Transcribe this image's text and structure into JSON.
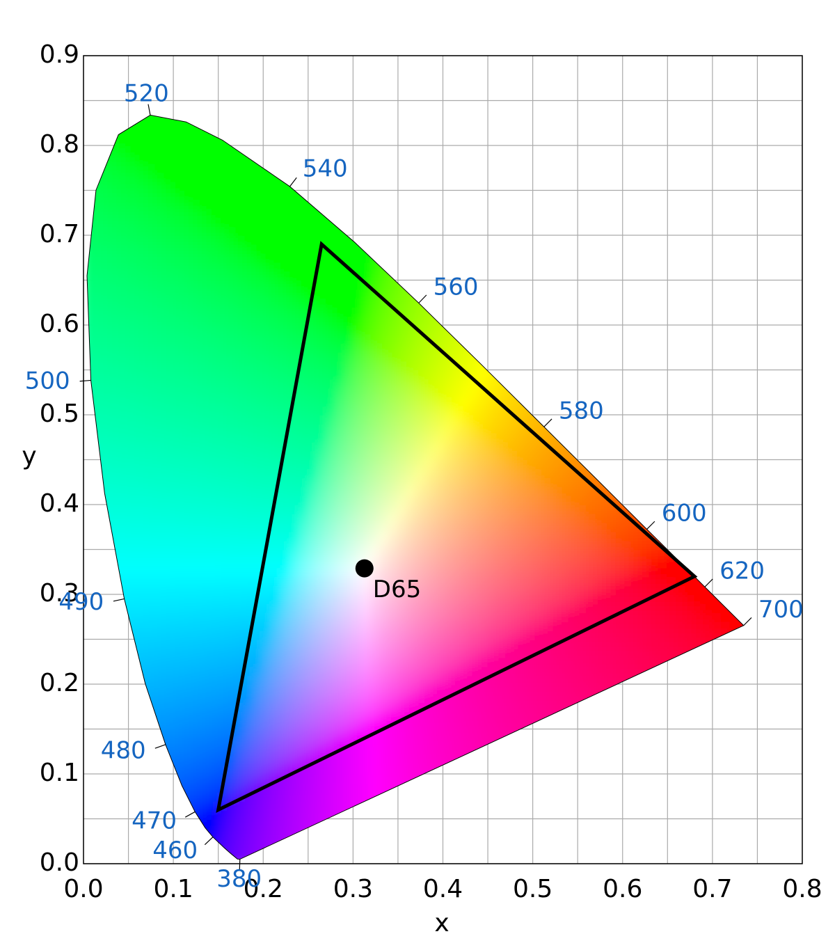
{
  "chart_data": {
    "type": "chromaticity",
    "x_label": "x",
    "y_label": "y",
    "xlim": [
      0,
      0.8
    ],
    "ylim": [
      0,
      0.9
    ],
    "xticks": [
      {
        "value": 0,
        "label": "0.0"
      },
      0.1,
      0.2,
      0.3,
      0.4,
      0.5,
      0.6,
      0.7,
      0.8
    ],
    "yticks": [
      {
        "value": 0,
        "label": "0.0"
      },
      0.1,
      0.2,
      0.3,
      0.4,
      0.5,
      0.6,
      0.7,
      0.8,
      0.9
    ],
    "grid": true,
    "label_color": "#1565c0",
    "locus": {
      "x": [
        0.1741,
        0.1714,
        0.1644,
        0.1566,
        0.144,
        0.1355,
        0.1241,
        0.1096,
        0.0913,
        0.0687,
        0.0454,
        0.0235,
        0.0082,
        0.0039,
        0.0139,
        0.0389,
        0.0743,
        0.1142,
        0.1547,
        0.2296,
        0.3016,
        0.3731,
        0.4441,
        0.5125,
        0.5752,
        0.627,
        0.6658,
        0.6915,
        0.719,
        0.7347
      ],
      "y": [
        0.005,
        0.0051,
        0.0109,
        0.0177,
        0.0297,
        0.0399,
        0.0578,
        0.0868,
        0.1327,
        0.2007,
        0.295,
        0.4127,
        0.5384,
        0.6548,
        0.7502,
        0.812,
        0.8338,
        0.8262,
        0.8059,
        0.7543,
        0.6923,
        0.6245,
        0.5547,
        0.4866,
        0.4242,
        0.3725,
        0.334,
        0.3083,
        0.2809,
        0.2653
      ],
      "labels": [
        380,
        null,
        null,
        null,
        460,
        null,
        470,
        null,
        480,
        null,
        490,
        null,
        500,
        null,
        null,
        null,
        520,
        null,
        null,
        540,
        null,
        560,
        null,
        580,
        null,
        600,
        null,
        620,
        null,
        700
      ]
    },
    "gamut": {
      "x": [
        0.68,
        0.265,
        0.15
      ],
      "y": [
        0.32,
        0.69,
        0.06
      ],
      "color": "#000000"
    },
    "white_point": {
      "name": "D65",
      "x": 0.3127,
      "y": 0.329,
      "color": "#000000"
    }
  }
}
